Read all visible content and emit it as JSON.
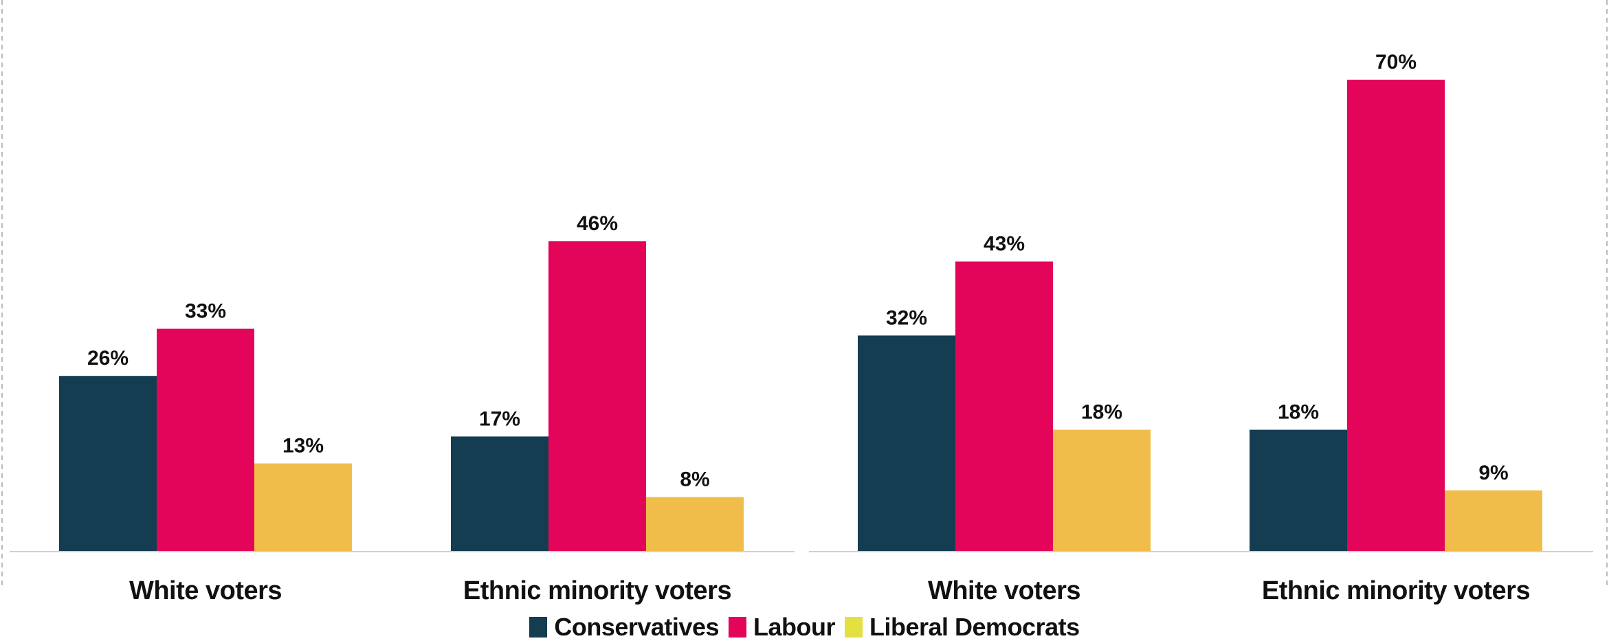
{
  "chart_data": [
    {
      "type": "bar",
      "categories": [
        "White voters",
        "Ethnic minority voters"
      ],
      "series": [
        {
          "name": "Conservatives",
          "values": [
            26,
            17
          ],
          "labels": [
            "26%",
            "17%"
          ],
          "color": "#143d52"
        },
        {
          "name": "Labour",
          "values": [
            33,
            46
          ],
          "labels": [
            "33%",
            "46%"
          ],
          "color": "#e3055a"
        },
        {
          "name": "Liberal Democrats",
          "values": [
            13,
            8
          ],
          "labels": [
            "13%",
            "8%"
          ],
          "color": "#f0bd4a"
        }
      ],
      "value_format": "percent",
      "ylim": [
        0,
        80
      ],
      "grid": false
    },
    {
      "type": "bar",
      "categories": [
        "White voters",
        "Ethnic minority voters"
      ],
      "series": [
        {
          "name": "Conservatives",
          "values": [
            32,
            18
          ],
          "labels": [
            "32%",
            "18%"
          ],
          "color": "#143d52"
        },
        {
          "name": "Labour",
          "values": [
            43,
            70
          ],
          "labels": [
            "43%",
            "70%"
          ],
          "color": "#e3055a"
        },
        {
          "name": "Liberal Democrats",
          "values": [
            18,
            9
          ],
          "labels": [
            "18%",
            "9%"
          ],
          "color": "#f0bd4a"
        }
      ],
      "value_format": "percent",
      "ylim": [
        0,
        80
      ],
      "grid": false
    }
  ],
  "legend": {
    "placement": "bottom",
    "items": [
      {
        "label": "Conservatives",
        "color": "#143d52"
      },
      {
        "label": "Labour",
        "color": "#e3055a"
      },
      {
        "label": "Liberal Democrats",
        "color": "#e3e03f"
      }
    ]
  }
}
